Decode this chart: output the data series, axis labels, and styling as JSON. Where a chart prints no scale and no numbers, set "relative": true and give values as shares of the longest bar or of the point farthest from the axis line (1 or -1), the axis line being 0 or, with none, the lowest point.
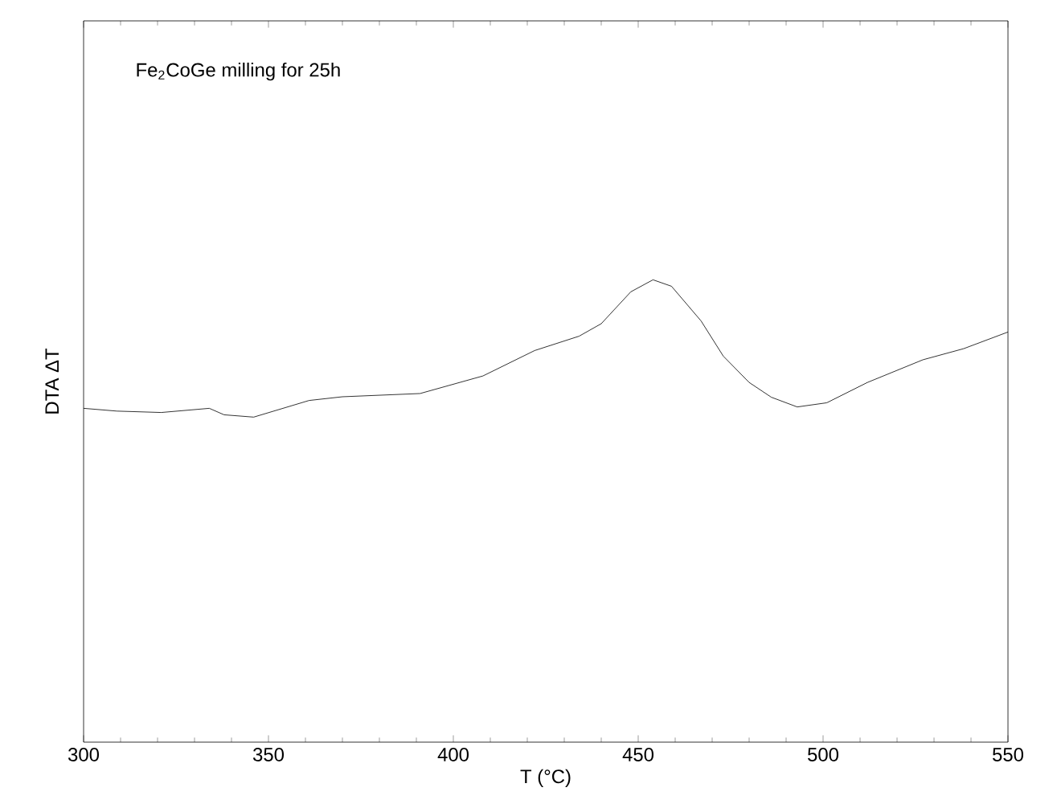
{
  "chart_data": {
    "type": "line",
    "relative": true,
    "xlabel": "T (°C)",
    "ylabel": "DTA ΔT",
    "annotations": [
      "Fe$_{2}$CoGe milling for 25h"
    ],
    "xlim": [
      300,
      550
    ],
    "xticks": [
      300,
      350,
      400,
      450,
      500,
      550
    ],
    "color": "#000000",
    "x": [
      300,
      309,
      321,
      334,
      338,
      346,
      361,
      370,
      391,
      408,
      422,
      434,
      440,
      448,
      454,
      459,
      467,
      473,
      480,
      486,
      493,
      501,
      512,
      527,
      538,
      550
    ],
    "values": [
      0.722,
      0.716,
      0.713,
      0.722,
      0.708,
      0.703,
      0.739,
      0.747,
      0.754,
      0.792,
      0.847,
      0.878,
      0.905,
      0.974,
      1,
      0.986,
      0.911,
      0.835,
      0.778,
      0.746,
      0.725,
      0.734,
      0.778,
      0.827,
      0.851,
      0.887
    ]
  }
}
